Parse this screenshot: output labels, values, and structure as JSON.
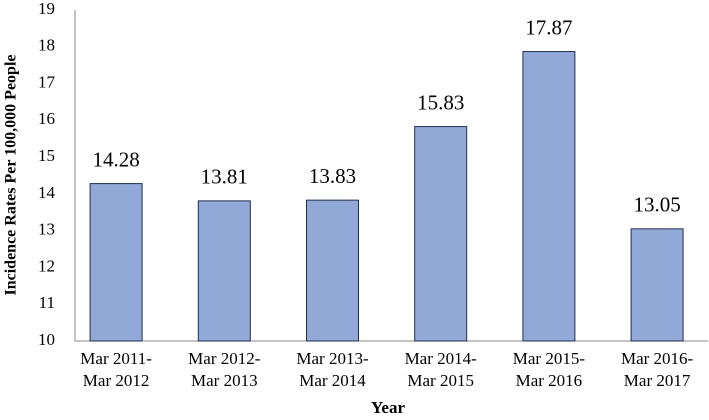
{
  "chart_data": {
    "type": "bar",
    "x_label": "Year",
    "y_label": "Incidence Rates Per 100,000 People",
    "categories": [
      "Mar 2011-\nMar 2012",
      "Mar 2012-\nMar 2013",
      "Mar 2013-\nMar 2014",
      "Mar 2014-\nMar 2015",
      "Mar 2015-\nMar 2016",
      "Mar 2016-\nMar 2017"
    ],
    "values": [
      14.28,
      13.81,
      13.83,
      15.83,
      17.87,
      13.05
    ],
    "color": "#92a8d6",
    "ylim": [
      10,
      19
    ],
    "yticks": [
      10,
      11,
      12,
      13,
      14,
      15,
      16,
      17,
      18,
      19
    ],
    "grid": false
  }
}
